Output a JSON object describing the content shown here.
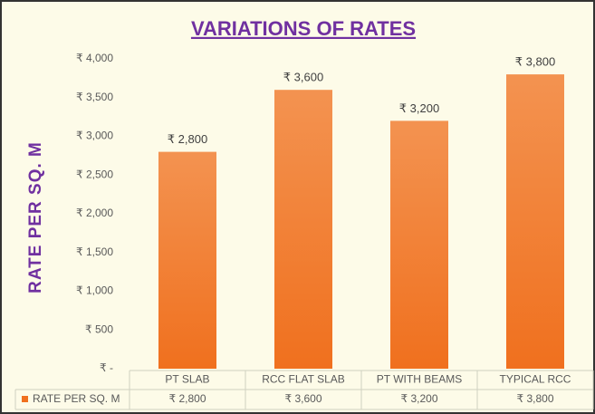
{
  "chart_data": {
    "type": "bar",
    "title": "VARIATIONS OF RATES",
    "y_label": "RATE PER SQ. M",
    "categories": [
      "PT SLAB",
      "RCC FLAT SLAB",
      "PT WITH BEAMS",
      "TYPICAL RCC"
    ],
    "series": [
      {
        "name": "RATE PER SQ. M",
        "color": "#f0701e",
        "values": [
          2800,
          3600,
          3200,
          3800
        ],
        "value_labels": [
          "₹ 2,800",
          "₹ 3,600",
          "₹ 3,200",
          "₹ 3,800"
        ]
      }
    ],
    "ylim": [
      0,
      4000
    ],
    "yticks": [
      {
        "value": 0,
        "label": "₹ -"
      },
      {
        "value": 500,
        "label": "₹ 500"
      },
      {
        "value": 1000,
        "label": "₹ 1,000"
      },
      {
        "value": 1500,
        "label": "₹ 1,500"
      },
      {
        "value": 2000,
        "label": "₹ 2,000"
      },
      {
        "value": 2500,
        "label": "₹ 2,500"
      },
      {
        "value": 3000,
        "label": "₹ 3,000"
      },
      {
        "value": 3500,
        "label": "₹ 3,500"
      },
      {
        "value": 4000,
        "label": "₹ 4,000"
      }
    ],
    "grid": false,
    "data_table": true
  }
}
